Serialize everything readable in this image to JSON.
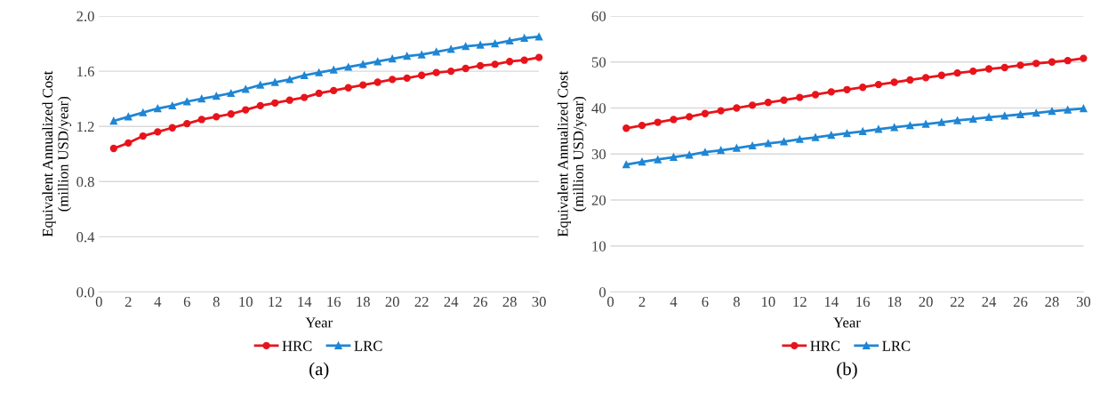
{
  "chart_data": [
    {
      "type": "line",
      "xlabel": "Year",
      "ylabel": "Equivalent Annualized Cost\n(million USD/year)",
      "annotations": [
        "(a)"
      ],
      "x": [
        1,
        2,
        3,
        4,
        5,
        6,
        7,
        8,
        9,
        10,
        11,
        12,
        13,
        14,
        15,
        16,
        17,
        18,
        19,
        20,
        21,
        22,
        23,
        24,
        25,
        26,
        27,
        28,
        29,
        30
      ],
      "series": [
        {
          "name": "HRC",
          "color": "#e8141b",
          "marker": "circle",
          "values": [
            1.04,
            1.08,
            1.13,
            1.16,
            1.19,
            1.22,
            1.25,
            1.27,
            1.29,
            1.32,
            1.35,
            1.37,
            1.39,
            1.41,
            1.44,
            1.46,
            1.48,
            1.5,
            1.52,
            1.54,
            1.55,
            1.57,
            1.59,
            1.6,
            1.62,
            1.64,
            1.65,
            1.67,
            1.68,
            1.7
          ]
        },
        {
          "name": "LRC",
          "color": "#1f86d4",
          "marker": "triangle",
          "values": [
            1.24,
            1.27,
            1.3,
            1.33,
            1.35,
            1.38,
            1.4,
            1.42,
            1.44,
            1.47,
            1.5,
            1.52,
            1.54,
            1.57,
            1.59,
            1.61,
            1.63,
            1.65,
            1.67,
            1.69,
            1.71,
            1.72,
            1.74,
            1.76,
            1.78,
            1.79,
            1.8,
            1.82,
            1.84,
            1.85
          ]
        }
      ],
      "xlim": [
        0,
        30
      ],
      "xticks": [
        0,
        2,
        4,
        6,
        8,
        10,
        12,
        14,
        16,
        18,
        20,
        22,
        24,
        26,
        28,
        30
      ],
      "ylim": [
        0,
        2
      ],
      "yticks": [
        {
          "value": 0,
          "label": "0.0"
        },
        {
          "value": 0.4,
          "label": "0.4"
        },
        {
          "value": 0.8,
          "label": "0.8"
        },
        {
          "value": 1.2,
          "label": "1.2"
        },
        {
          "value": 1.6,
          "label": "1.6"
        },
        {
          "value": 2,
          "label": "2.0"
        }
      ],
      "grid": "y",
      "legend": "bottom"
    },
    {
      "type": "line",
      "xlabel": "Year",
      "ylabel": "Equivalent Annualized Cost\n(million USD/year)",
      "annotations": [
        "(b)"
      ],
      "x": [
        1,
        2,
        3,
        4,
        5,
        6,
        7,
        8,
        9,
        10,
        11,
        12,
        13,
        14,
        15,
        16,
        17,
        18,
        19,
        20,
        21,
        22,
        23,
        24,
        25,
        26,
        27,
        28,
        29,
        30
      ],
      "series": [
        {
          "name": "HRC",
          "color": "#e8141b",
          "marker": "circle",
          "values": [
            35.6,
            36.2,
            36.9,
            37.5,
            38.1,
            38.8,
            39.4,
            40.0,
            40.6,
            41.2,
            41.7,
            42.3,
            42.9,
            43.5,
            44.0,
            44.5,
            45.1,
            45.6,
            46.1,
            46.6,
            47.1,
            47.6,
            48.0,
            48.5,
            48.8,
            49.3,
            49.7,
            50.0,
            50.3,
            50.8
          ]
        },
        {
          "name": "LRC",
          "color": "#1f86d4",
          "marker": "triangle",
          "values": [
            27.7,
            28.3,
            28.8,
            29.3,
            29.8,
            30.4,
            30.8,
            31.3,
            31.8,
            32.3,
            32.7,
            33.2,
            33.6,
            34.1,
            34.5,
            34.9,
            35.4,
            35.8,
            36.2,
            36.5,
            36.9,
            37.3,
            37.6,
            38.0,
            38.3,
            38.6,
            38.9,
            39.3,
            39.6,
            39.9
          ]
        }
      ],
      "xlim": [
        0,
        30
      ],
      "xticks": [
        0,
        2,
        4,
        6,
        8,
        10,
        12,
        14,
        16,
        18,
        20,
        22,
        24,
        26,
        28,
        30
      ],
      "ylim": [
        0,
        60
      ],
      "yticks": [
        0,
        10,
        20,
        30,
        40,
        50,
        60
      ],
      "grid": "y",
      "legend": "bottom"
    }
  ]
}
